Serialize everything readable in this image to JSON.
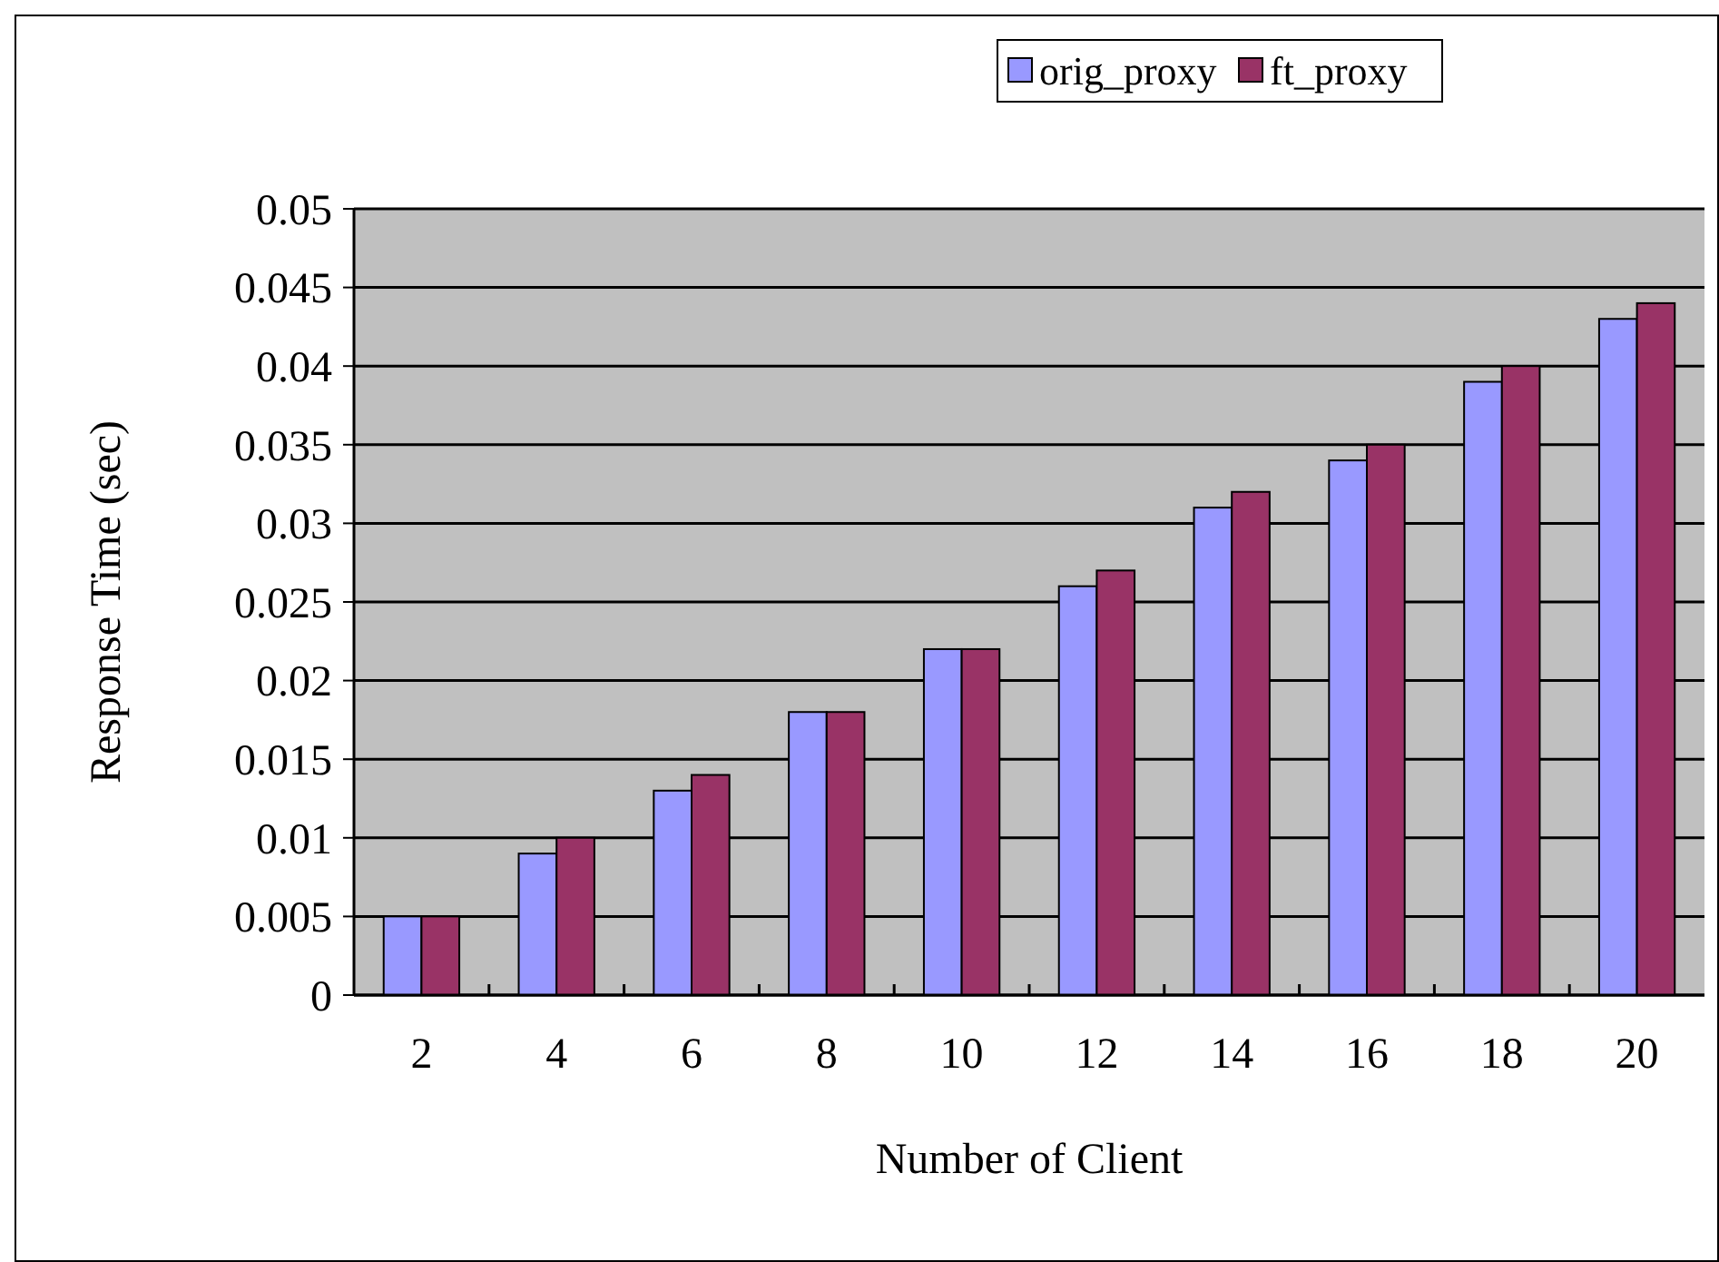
{
  "chart_data": {
    "type": "bar",
    "xlabel": "Number of Client",
    "ylabel": "Response Time (sec)",
    "categories": [
      "2",
      "4",
      "6",
      "8",
      "10",
      "12",
      "14",
      "16",
      "18",
      "20"
    ],
    "series": [
      {
        "name": "orig_proxy",
        "color": "#9999ff",
        "values": [
          0.005,
          0.009,
          0.013,
          0.018,
          0.022,
          0.026,
          0.031,
          0.034,
          0.039,
          0.043
        ]
      },
      {
        "name": "ft_proxy",
        "color": "#993366",
        "values": [
          0.005,
          0.01,
          0.014,
          0.018,
          0.022,
          0.027,
          0.032,
          0.035,
          0.04,
          0.044
        ]
      }
    ],
    "ylim": [
      0,
      0.05
    ],
    "yticks": [
      0,
      0.005,
      0.01,
      0.015,
      0.02,
      0.025,
      0.03,
      0.035,
      0.04,
      0.045,
      0.05
    ],
    "grid": "y",
    "legend": "top"
  }
}
